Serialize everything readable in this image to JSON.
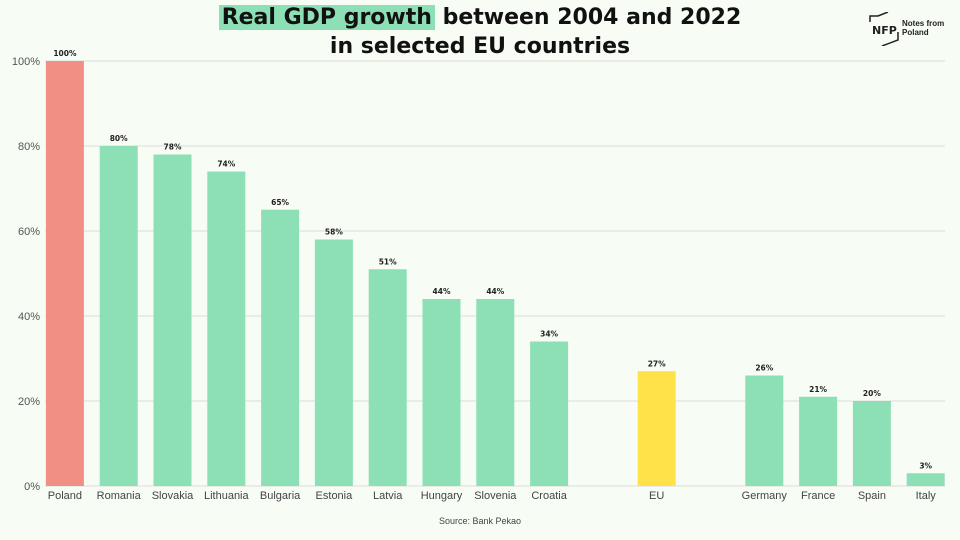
{
  "title": {
    "highlight": "Real GDP growth",
    "rest_line1": " between 2004 and 2022",
    "line2": "in selected EU countries"
  },
  "logo": {
    "mark": "NFP",
    "line1": "Notes from",
    "line2": "Poland"
  },
  "source": "Source:  Bank Pekao",
  "colors": {
    "poland": "#f08f84",
    "country": "#8de0b6",
    "eu": "#ffe24a",
    "grid": "#dcdcdc"
  },
  "chart_data": {
    "type": "bar",
    "title": "Real GDP growth between 2004 and 2022 in selected EU countries",
    "categories": [
      "Poland",
      "Romania",
      "Slovakia",
      "Lithuania",
      "Bulgaria",
      "Estonia",
      "Latvia",
      "Hungary",
      "Slovenia",
      "Croatia",
      "",
      "EU",
      "",
      "Germany",
      "France",
      "Spain",
      "Italy"
    ],
    "values": [
      100,
      80,
      78,
      74,
      65,
      58,
      51,
      44,
      44,
      34,
      null,
      27,
      null,
      26,
      21,
      20,
      3
    ],
    "data_labels": [
      "100%",
      "80%",
      "78%",
      "74%",
      "65%",
      "58%",
      "51%",
      "44%",
      "44%",
      "34%",
      "",
      "27%",
      "",
      "26%",
      "21%",
      "20%",
      "3%"
    ],
    "yticks": [
      "0%",
      "20%",
      "40%",
      "60%",
      "80%",
      "100%"
    ],
    "ytick_values": [
      0,
      20,
      40,
      60,
      80,
      100
    ],
    "ylim": [
      0,
      100
    ],
    "xlabel": "",
    "ylabel": "",
    "grid": true
  }
}
